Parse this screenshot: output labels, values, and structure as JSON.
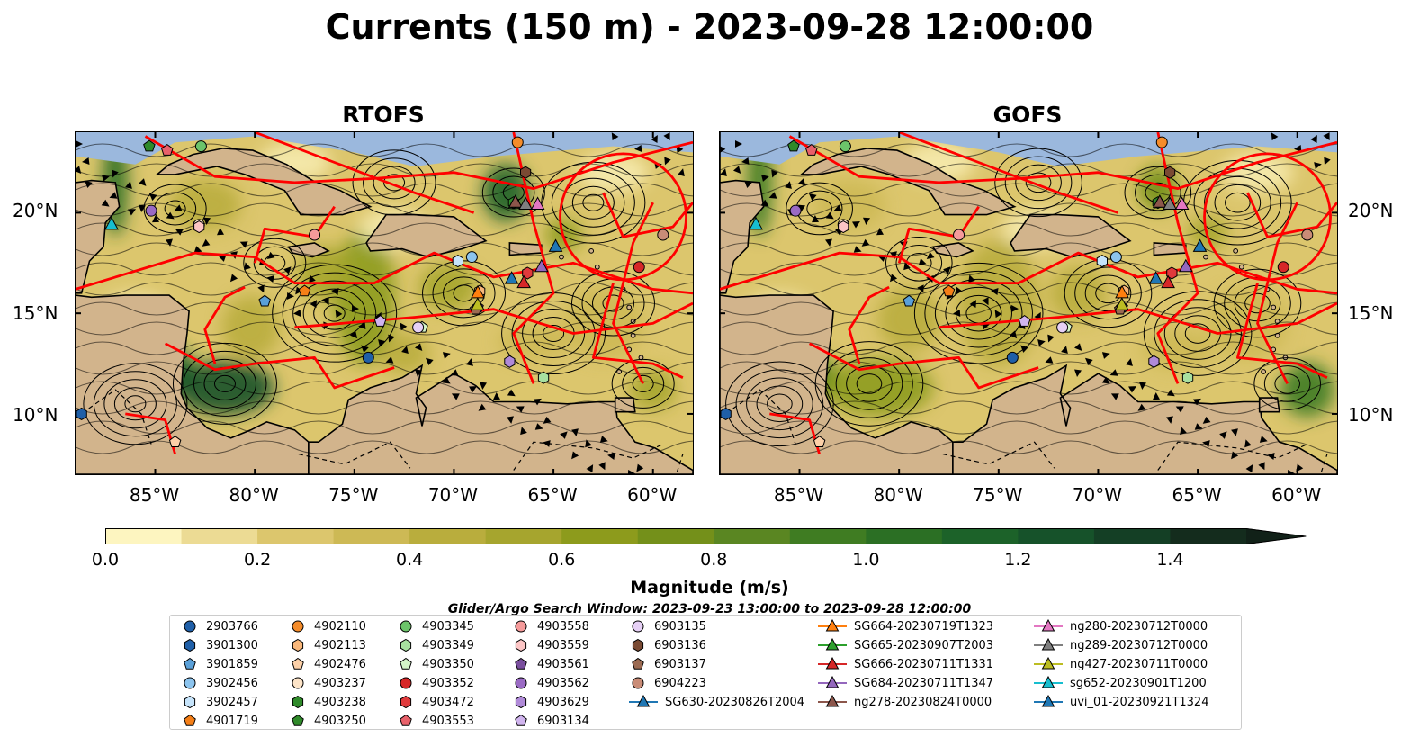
{
  "figure": {
    "title": "Currents (150 m) - 2023-09-28 12:00:00",
    "panels": [
      {
        "title": "RTOFS",
        "key": "rtofs"
      },
      {
        "title": "GOFS",
        "key": "gofs"
      }
    ],
    "lat_ticks": [
      "20°N",
      "15°N",
      "10°N"
    ],
    "lon_ticks": [
      "85°W",
      "80°W",
      "75°W",
      "70°W",
      "65°W",
      "60°W"
    ],
    "colorbar": {
      "label": "Magnitude (m/s)",
      "ticks": [
        "0.0",
        "0.2",
        "0.4",
        "0.6",
        "0.8",
        "1.0",
        "1.2",
        "1.4"
      ]
    },
    "search_window": "Glider/Argo Search Window: 2023-09-23 13:00:00 to 2023-09-28 12:00:00"
  },
  "chart_data": {
    "type": "heatmap",
    "title": "Currents (150 m) - 2023-09-28 12:00:00",
    "variable": "current magnitude at 150 m",
    "unit": "m/s",
    "panels": [
      "RTOFS",
      "GOFS"
    ],
    "xlim": [
      -89,
      -58
    ],
    "ylim": [
      7,
      24
    ],
    "colorbar_range": [
      0.0,
      1.5
    ],
    "colorbar_extend": "max",
    "colorbar_levels": [
      0.0,
      0.1,
      0.2,
      0.3,
      0.4,
      0.5,
      0.6,
      0.7,
      0.8,
      0.9,
      1.0,
      1.1,
      1.2,
      1.3,
      1.4,
      1.5
    ],
    "colors": [
      "#fdf5c0",
      "#ecdb94",
      "#dcc66d",
      "#cdb955",
      "#b9ad3d",
      "#a6a52e",
      "#8d9b1c",
      "#74901a",
      "#5a8622",
      "#3f7c22",
      "#2b6f24",
      "#1c6229",
      "#16522a",
      "#143f25",
      "#142c1d",
      "#112118"
    ],
    "legend_columns": 6,
    "floats": [
      {
        "id": "2903766",
        "marker": "circle",
        "color": "#1f5fa8",
        "lon": -74.3,
        "lat": 12.8
      },
      {
        "id": "3901300",
        "marker": "hexagon",
        "color": "#1f5fa8",
        "lon": -88.7,
        "lat": 10.0
      },
      {
        "id": "3901859",
        "marker": "pentagon",
        "color": "#5aa0d8",
        "lon": -79.5,
        "lat": 15.6
      },
      {
        "id": "3902456",
        "marker": "circle",
        "color": "#8cc4ee",
        "lon": -69.1,
        "lat": 17.8
      },
      {
        "id": "3902457",
        "marker": "hexagon",
        "color": "#c6e4fb",
        "lon": -69.8,
        "lat": 17.6
      },
      {
        "id": "4901719",
        "marker": "pentagon",
        "color": "#f57f17",
        "lon": -77.5,
        "lat": 16.1
      },
      {
        "id": "4902110",
        "marker": "circle",
        "color": "#f58c2a",
        "lon": -66.8,
        "lat": 23.5
      },
      {
        "id": "4902113",
        "marker": "hexagon",
        "color": "#f9b77a",
        "lon": -68.7,
        "lat": 16.1
      },
      {
        "id": "4902476",
        "marker": "pentagon",
        "color": "#fcd0a8",
        "lon": -84.0,
        "lat": 8.6
      },
      {
        "id": "4903237",
        "marker": "circle",
        "color": "#fde4c8",
        "lon": -82.8,
        "lat": 19.4
      },
      {
        "id": "4903238",
        "marker": "hexagon",
        "color": "#2f8a2a",
        "lon": -67.0,
        "lat": 20.5
      },
      {
        "id": "4903250",
        "marker": "pentagon",
        "color": "#2f8a2a",
        "lon": -85.3,
        "lat": 23.3
      },
      {
        "id": "4903345",
        "marker": "circle",
        "color": "#6cc46a",
        "lon": -82.7,
        "lat": 23.3
      },
      {
        "id": "4903349",
        "marker": "hexagon",
        "color": "#a8e0a0",
        "lon": -65.5,
        "lat": 11.8
      },
      {
        "id": "4903350",
        "marker": "pentagon",
        "color": "#d4f4c8",
        "lon": -71.6,
        "lat": 14.3
      },
      {
        "id": "4903352",
        "marker": "circle",
        "color": "#d62728",
        "lon": -60.7,
        "lat": 17.3
      },
      {
        "id": "4903472",
        "marker": "hexagon",
        "color": "#e03a3c",
        "lon": -66.3,
        "lat": 17.0
      },
      {
        "id": "4903553",
        "marker": "pentagon",
        "color": "#e8616a",
        "lon": -84.4,
        "lat": 23.1
      },
      {
        "id": "4903558",
        "marker": "circle",
        "color": "#f59a9a",
        "lon": -77.0,
        "lat": 18.9
      },
      {
        "id": "4903559",
        "marker": "hexagon",
        "color": "#fcc5c5",
        "lon": -82.8,
        "lat": 19.3
      },
      {
        "id": "4903561",
        "marker": "pentagon",
        "color": "#7a4f9e",
        "lon": -68.8,
        "lat": 15.3
      },
      {
        "id": "4903562",
        "marker": "circle",
        "color": "#9a6ac4",
        "lon": -85.2,
        "lat": 20.1
      },
      {
        "id": "4903629",
        "marker": "hexagon",
        "color": "#b08ad8",
        "lon": -67.2,
        "lat": 12.6
      },
      {
        "id": "6903134",
        "marker": "pentagon",
        "color": "#d0b4ee",
        "lon": -73.7,
        "lat": 14.6
      },
      {
        "id": "6903135",
        "marker": "circle",
        "color": "#e6d0f5",
        "lon": -71.8,
        "lat": 14.3
      },
      {
        "id": "6903136",
        "marker": "hexagon",
        "color": "#7a4a33",
        "lon": -66.4,
        "lat": 22.0
      },
      {
        "id": "6903137",
        "marker": "pentagon",
        "color": "#9b6a52",
        "lon": -68.9,
        "lat": 15.2
      },
      {
        "id": "6904223",
        "marker": "circle",
        "color": "#c98c77",
        "lon": -59.5,
        "lat": 18.9
      }
    ],
    "gliders": [
      {
        "id": "SG630-20230826T2004",
        "color": "#1f77b4",
        "lon": -64.8,
        "lat": 18.3
      },
      {
        "id": "SG664-20230719T1323",
        "color": "#ff7f0e",
        "lon": -68.8,
        "lat": 16.0
      },
      {
        "id": "SG665-20230907T2003",
        "color": "#2ca02c",
        "lon": -67.0,
        "lat": 20.5
      },
      {
        "id": "SG666-20230711T1331",
        "color": "#d62728",
        "lon": -66.4,
        "lat": 16.5
      },
      {
        "id": "SG684-20230711T1347",
        "color": "#9467bd",
        "lon": -65.6,
        "lat": 17.3
      },
      {
        "id": "ng278-20230824T0000",
        "color": "#8c564b",
        "lon": -67.0,
        "lat": 20.5
      },
      {
        "id": "ng280-20230712T0000",
        "color": "#e377c2",
        "lon": -65.7,
        "lat": 20.4
      },
      {
        "id": "ng289-20230712T0000",
        "color": "#7f7f7f",
        "lon": -66.4,
        "lat": 20.4
      },
      {
        "id": "ng427-20230711T0000",
        "color": "#bcbd22",
        "lon": -68.9,
        "lat": 15.4
      },
      {
        "id": "sg652-20230901T1200",
        "color": "#17becf",
        "lon": -87.1,
        "lat": 19.4
      },
      {
        "id": "uvi_01-20230921T1324",
        "color": "#1f77b4",
        "lon": -67.1,
        "lat": 16.7
      }
    ]
  }
}
